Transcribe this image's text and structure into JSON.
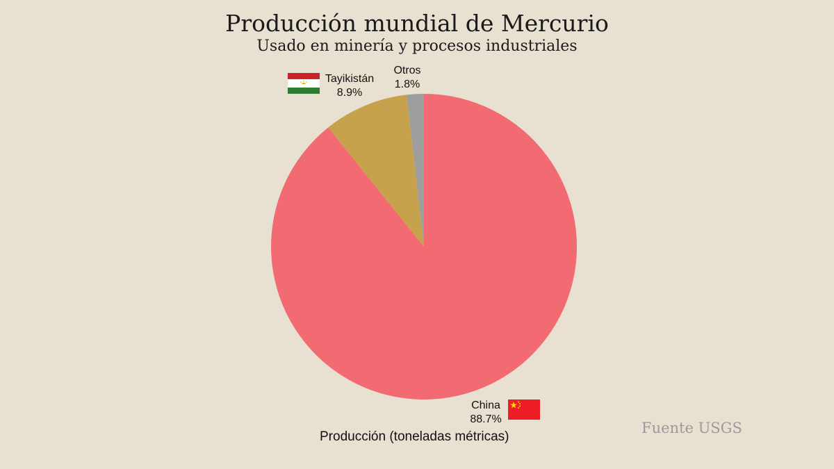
{
  "chart_data": {
    "type": "pie",
    "title": "Producción mundial de Mercurio",
    "subtitle": "Usado en minería y procesos industriales",
    "xlabel": "Producción (toneladas métricas)",
    "source": "Fuente USGS",
    "slices": [
      {
        "label": "China",
        "value": 88.7,
        "value_label": "88.7%",
        "color": "#f26b72",
        "flag": "china-flag"
      },
      {
        "label": "Tayikistán",
        "value": 8.9,
        "value_label": "8.9%",
        "color": "#c7a24c",
        "flag": "tajikistan-flag"
      },
      {
        "label": "Otros",
        "value": 1.8,
        "value_label": "1.8%",
        "color": "#9e9e9e"
      }
    ]
  }
}
